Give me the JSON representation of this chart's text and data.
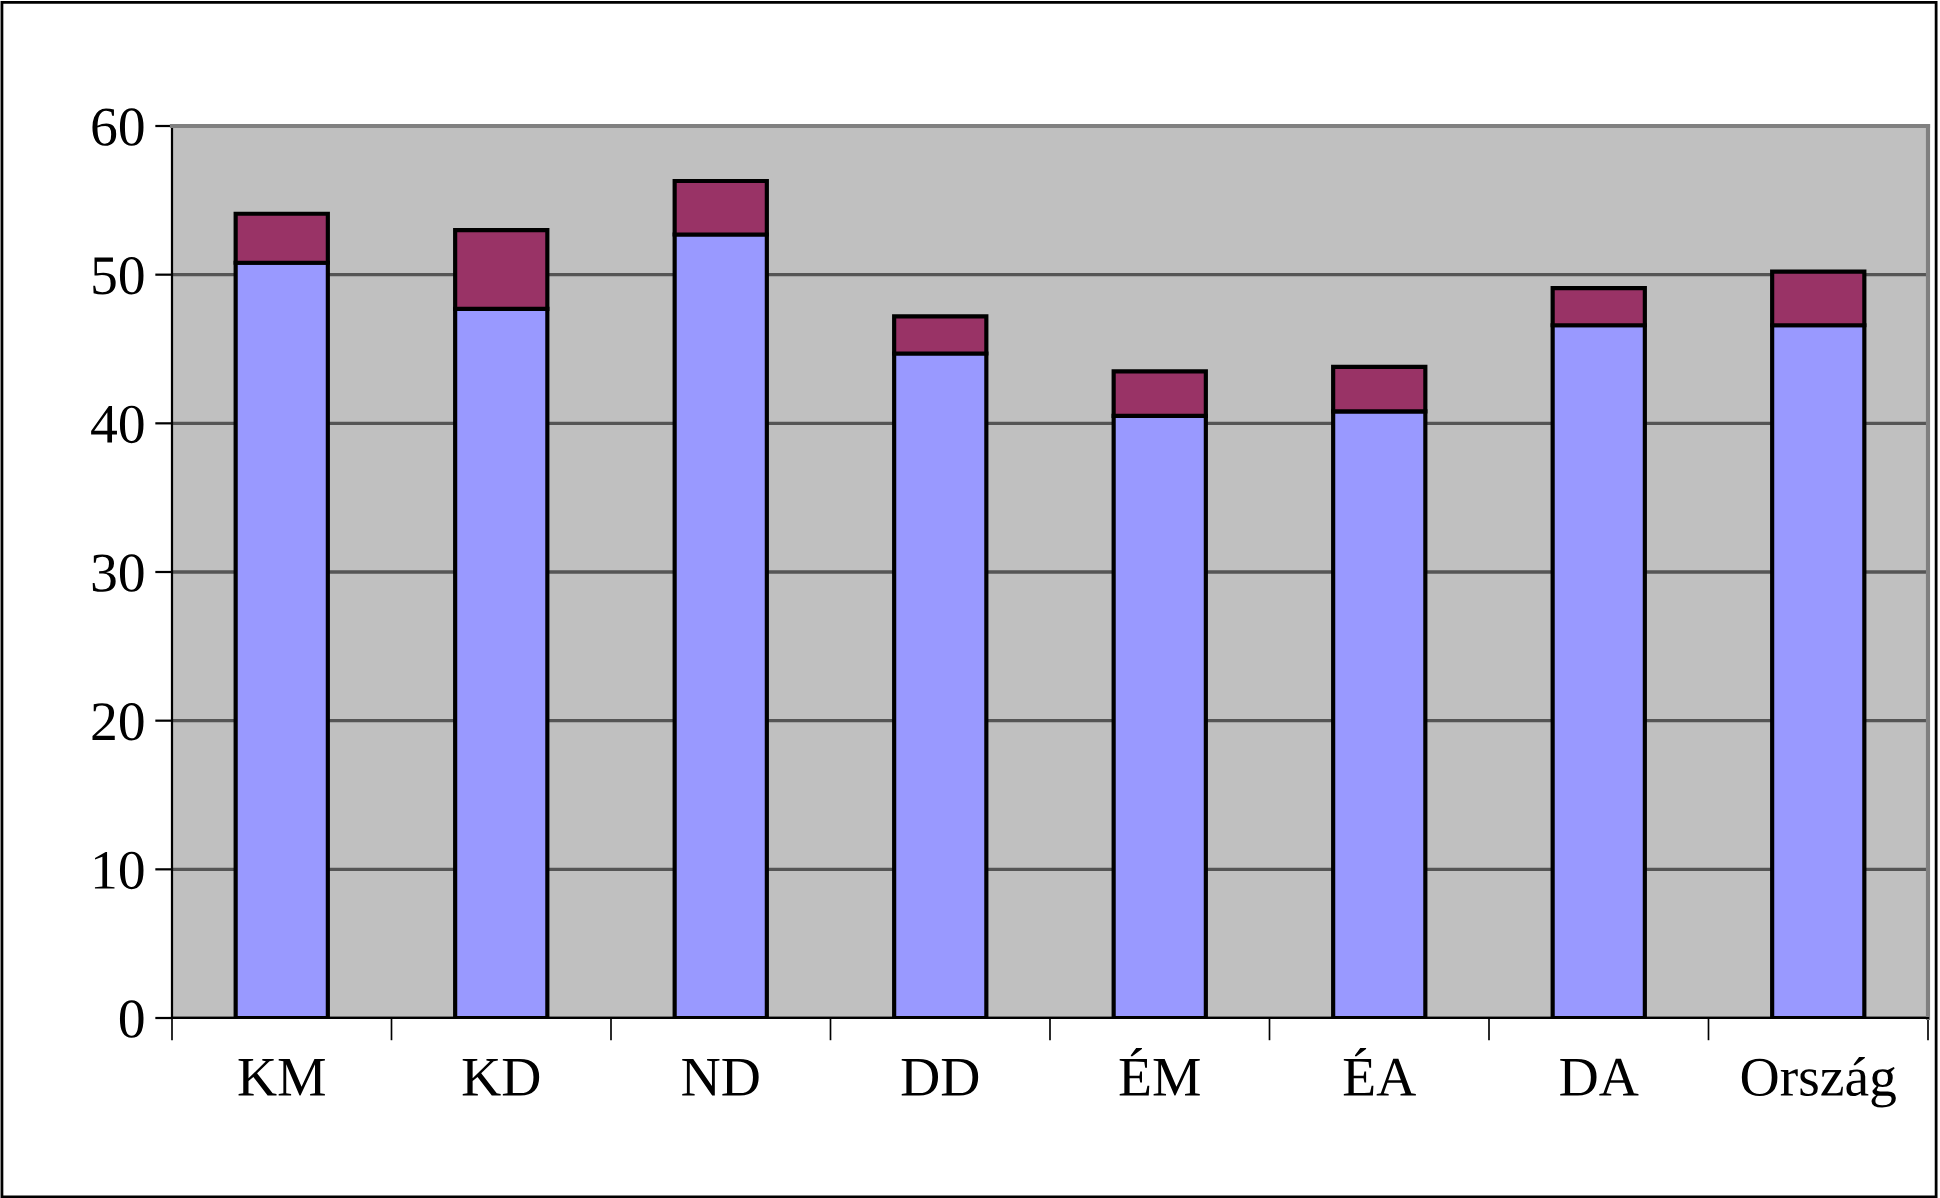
{
  "chart_data": {
    "type": "bar",
    "stacked": true,
    "categories": [
      "KM",
      "KD",
      "ND",
      "DD",
      "ÉM",
      "ÉA",
      "DA",
      "Ország"
    ],
    "series": [
      {
        "color": "#9999ff",
        "values": [
          50.8,
          47.7,
          52.7,
          44.7,
          40.5,
          40.8,
          46.6,
          46.6
        ]
      },
      {
        "color": "#993366",
        "values": [
          3.3,
          5.3,
          3.6,
          2.5,
          3.0,
          3.0,
          2.5,
          3.6
        ]
      }
    ],
    "ylim": [
      0,
      60
    ],
    "yticks": [
      0,
      10,
      20,
      30,
      40,
      50,
      60
    ],
    "grid": "y",
    "legend": false
  }
}
